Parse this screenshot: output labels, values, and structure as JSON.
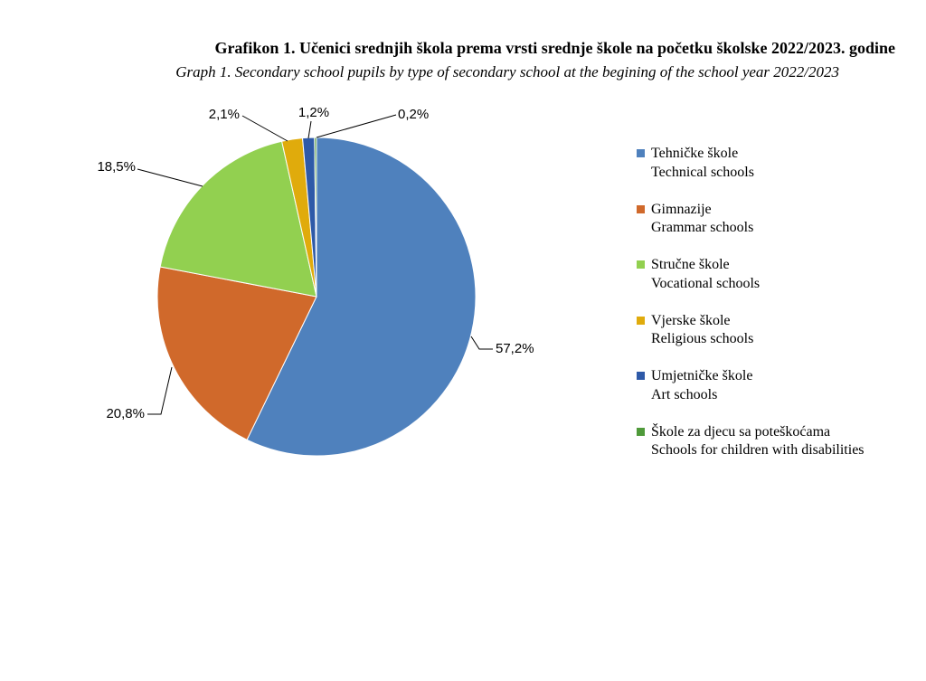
{
  "title": "Grafikon 1.  Učenici srednjih škola prema vrsti srednje škole na početku školske 2022/2023. godine",
  "subtitle": "Graph 1. Secondary school pupils by type of secondary school at the begining of the school year 2022/2023",
  "chart_data": {
    "type": "pie",
    "slices": [
      {
        "label_bs": "Tehničke škole",
        "label_en": "Technical schools",
        "value": 57.2,
        "data_label": "57,2%",
        "color": "#4f81bd"
      },
      {
        "label_bs": "Gimnazije",
        "label_en": "Grammar schools",
        "value": 20.8,
        "data_label": "20,8%",
        "color": "#d0692b"
      },
      {
        "label_bs": "Stručne škole",
        "label_en": "Vocational schools",
        "value": 18.5,
        "data_label": "18,5%",
        "color": "#92d050"
      },
      {
        "label_bs": "Vjerske škole",
        "label_en": "Religious schools",
        "value": 2.1,
        "data_label": "2,1%",
        "color": "#e0ab0c"
      },
      {
        "label_bs": "Umjetničke škole",
        "label_en": "Art schools",
        "value": 1.2,
        "data_label": "1,2%",
        "color": "#2e5aa8"
      },
      {
        "label_bs": "Škole za djecu sa poteškoćama",
        "label_en": "Schools for children with disabilities",
        "value": 0.2,
        "data_label": "0,2%",
        "color": "#4f9a3a"
      }
    ],
    "legend_position": "right"
  }
}
